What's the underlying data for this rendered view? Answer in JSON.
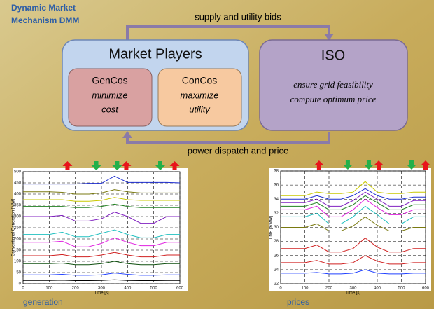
{
  "header": {
    "title": [
      "Dynamic Market",
      "Mechanism DMM"
    ]
  },
  "diagram": {
    "top_arrow_label": "supply and utility bids",
    "bottom_arrow_label": "power dispatch and price",
    "market_players": {
      "title": "Market Players",
      "gencos": {
        "name": "GenCos",
        "text": [
          "minimize",
          "cost"
        ]
      },
      "concos": {
        "name": "ConCos",
        "text": [
          "maximize",
          "utility"
        ]
      }
    },
    "iso": {
      "title": "ISO",
      "lines": [
        "ensure grid feasibility",
        "compute optimum price"
      ]
    }
  },
  "chart_data": [
    {
      "type": "line",
      "caption": "generation",
      "xlabel": "Time [s]",
      "ylabel": "Conventional Generation [MW]",
      "x": [
        0,
        50,
        100,
        150,
        200,
        250,
        300,
        350,
        400,
        450,
        500,
        550,
        600
      ],
      "xlim": [
        0,
        600
      ],
      "xticks": [
        0,
        100,
        200,
        300,
        400,
        500,
        600
      ],
      "ylim": [
        0,
        500
      ],
      "yticks": [
        0,
        50,
        100,
        150,
        200,
        250,
        300,
        350,
        400,
        450,
        500
      ],
      "grid": true,
      "events": {
        "increase": [
          170,
          395,
          580
        ],
        "decrease": [
          280,
          360,
          525
        ],
        "increase_color": "#e8141b",
        "decrease_color": "#22b04a"
      },
      "series": [
        {
          "color": "#1f2fd0",
          "values": [
            445,
            445,
            445,
            445,
            445,
            448,
            448,
            480,
            452,
            452,
            452,
            452,
            450
          ]
        },
        {
          "color": "#7a7a10",
          "values": [
            410,
            410,
            410,
            408,
            400,
            400,
            405,
            420,
            410,
            405,
            405,
            405,
            405
          ]
        },
        {
          "color": "#c8c800",
          "values": [
            375,
            375,
            375,
            375,
            368,
            368,
            372,
            385,
            375,
            372,
            372,
            372,
            372
          ]
        },
        {
          "color": "#208020",
          "values": [
            345,
            345,
            345,
            345,
            340,
            340,
            345,
            355,
            345,
            340,
            340,
            340,
            340
          ]
        },
        {
          "color": "#8020c0",
          "values": [
            300,
            300,
            300,
            305,
            280,
            280,
            290,
            320,
            300,
            270,
            270,
            300,
            300
          ]
        },
        {
          "color": "#20c0c0",
          "values": [
            220,
            220,
            220,
            230,
            210,
            210,
            225,
            240,
            220,
            205,
            205,
            220,
            220
          ]
        },
        {
          "color": "#e020e0",
          "values": [
            185,
            185,
            185,
            190,
            165,
            165,
            180,
            205,
            185,
            170,
            170,
            185,
            185
          ]
        },
        {
          "color": "#d02020",
          "values": [
            125,
            125,
            125,
            130,
            120,
            120,
            128,
            140,
            128,
            120,
            120,
            128,
            128
          ]
        },
        {
          "color": "#105010",
          "values": [
            90,
            90,
            90,
            92,
            85,
            85,
            90,
            100,
            90,
            85,
            85,
            90,
            90
          ]
        },
        {
          "color": "#2040ff",
          "values": [
            40,
            40,
            40,
            42,
            38,
            38,
            40,
            48,
            42,
            38,
            38,
            40,
            40
          ]
        },
        {
          "color": "#000000",
          "values": [
            15,
            15,
            15,
            16,
            14,
            14,
            15,
            18,
            15,
            14,
            14,
            15,
            15
          ]
        }
      ]
    },
    {
      "type": "line",
      "caption": "prices",
      "xlabel": "Time [s]",
      "ylabel": "LMP [$/MW]",
      "x": [
        0,
        50,
        100,
        150,
        200,
        250,
        300,
        350,
        400,
        450,
        500,
        550,
        600
      ],
      "xlim": [
        0,
        600
      ],
      "xticks": [
        0,
        100,
        200,
        300,
        400,
        500,
        600
      ],
      "ylim": [
        22,
        38
      ],
      "yticks": [
        22,
        24,
        26,
        28,
        30,
        32,
        34,
        36,
        38
      ],
      "grid": true,
      "events": {
        "increase": [
          159,
          406,
          600
        ],
        "decrease": [
          278,
          365,
          542
        ],
        "increase_color": "#e8141b",
        "decrease_color": "#22b04a"
      },
      "series": [
        {
          "color": "#c8c800",
          "values": [
            34.5,
            34.5,
            34.5,
            35,
            34.8,
            34.8,
            35,
            36.5,
            35,
            34.8,
            34.8,
            35,
            35
          ]
        },
        {
          "color": "#1f2fd0",
          "values": [
            34,
            34,
            34,
            34.5,
            34,
            34,
            34.5,
            35.5,
            34.5,
            34,
            34,
            34.3,
            34.3
          ]
        },
        {
          "color": "#8020c0",
          "values": [
            33.5,
            33.5,
            33.5,
            34,
            33,
            33,
            33.8,
            35,
            34,
            33,
            33,
            33.8,
            33.8
          ]
        },
        {
          "color": "#208020",
          "values": [
            33,
            33,
            33,
            33.5,
            32.5,
            32.5,
            33.2,
            34.5,
            33.5,
            32.5,
            32.5,
            33.2,
            33.2
          ]
        },
        {
          "color": "#e020e0",
          "values": [
            32.5,
            32.5,
            32.5,
            33,
            31.5,
            31.5,
            32.5,
            34,
            32.8,
            31.8,
            31.8,
            32.5,
            32.5
          ]
        },
        {
          "color": "#20c0c0",
          "values": [
            31.5,
            31.5,
            31.5,
            32,
            30.5,
            30.5,
            31.5,
            33,
            31.8,
            30.5,
            30.5,
            31.5,
            31.5
          ]
        },
        {
          "color": "#7a7a10",
          "values": [
            30,
            30,
            30,
            30.5,
            29.5,
            29.5,
            30.2,
            31.5,
            30.3,
            29.5,
            29.5,
            30,
            30
          ]
        },
        {
          "color": "#d02020",
          "values": [
            27,
            27,
            27,
            27.5,
            26.5,
            26.5,
            27,
            28.5,
            27.2,
            26.5,
            26.5,
            27,
            27
          ]
        },
        {
          "color": "#d02020",
          "values": [
            25,
            25,
            25,
            25.3,
            24.8,
            24.8,
            25,
            26,
            25.2,
            24.8,
            24.8,
            25,
            25
          ]
        },
        {
          "color": "#2040ff",
          "values": [
            23.5,
            23.5,
            23.5,
            23.6,
            23.4,
            23.4,
            23.5,
            24,
            23.5,
            23.4,
            23.4,
            23.5,
            23.5
          ]
        }
      ]
    }
  ]
}
